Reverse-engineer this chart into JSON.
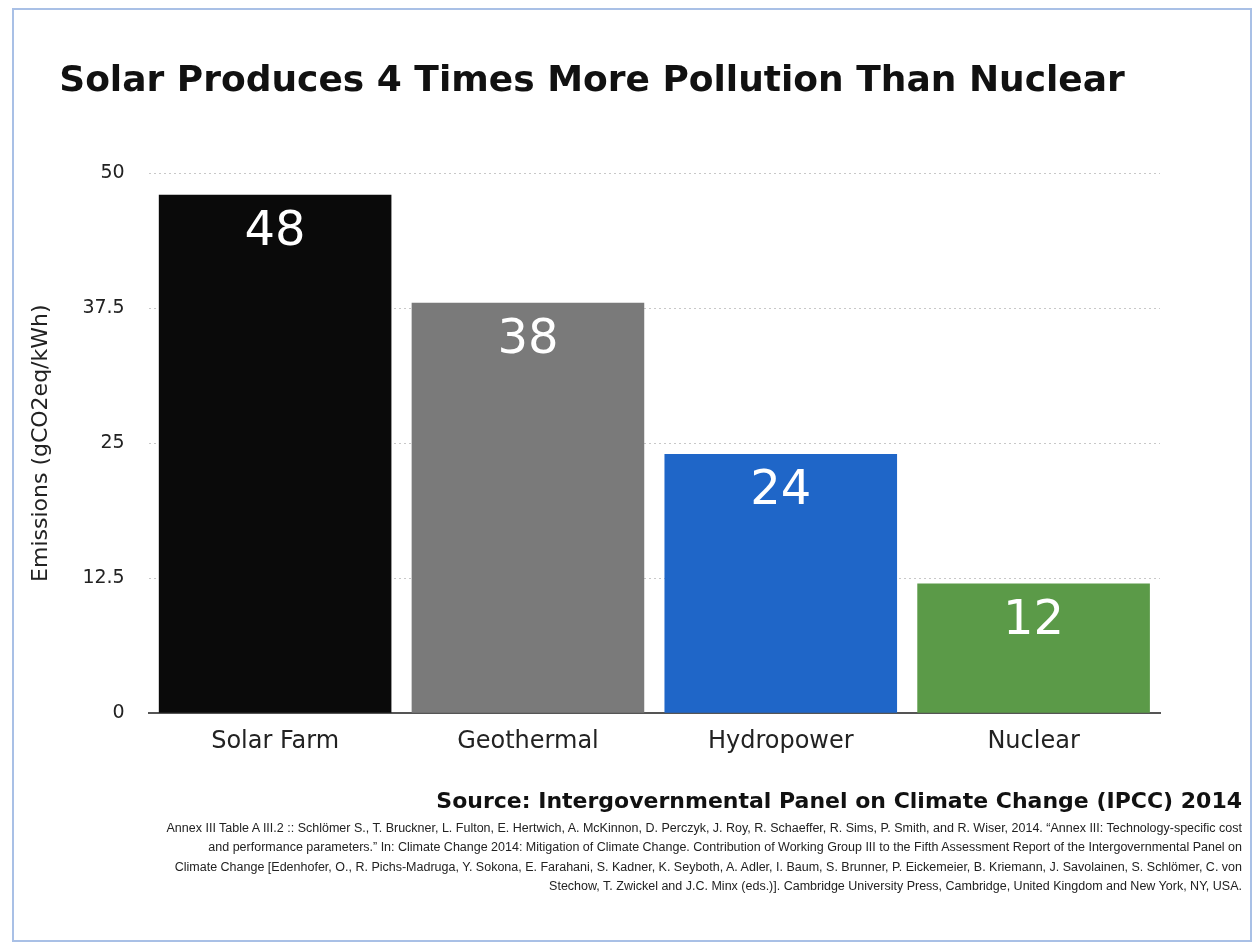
{
  "chart_data": {
    "type": "bar",
    "title": "Solar Produces 4 Times More Pollution Than Nuclear",
    "ylabel": "Emissions (gCO2eq/kWh)",
    "categories": [
      "Solar Farm",
      "Geothermal",
      "Hydropower",
      "Nuclear"
    ],
    "values": [
      48,
      38,
      24,
      12
    ],
    "colors": [
      "#0a0a0a",
      "#7a7a7a",
      "#1f66c8",
      "#5b9a48"
    ],
    "ylim": [
      0,
      50
    ],
    "yticks": [
      0,
      12.5,
      25,
      37.5,
      50
    ],
    "grid": "y",
    "data_labels": true,
    "legend": false,
    "annotations": [
      "Source: Intergovernmental Panel on Climate Change (IPCC) 2014",
      "Annex III Table A III.2  :: Schlömer S., T. Bruckner, L. Fulton, E. Hertwich, A. McKinnon, D. Perczyk, J. Roy, R. Schaeffer, R. Sims, P. Smith, and R. Wiser, 2014. “Annex III: Technology-specific cost and performance parameters.” In: Climate Change 2014: Mitigation of Climate Change. Contribution of Working Group III to the Fifth Assessment Report of the Intergovernmental Panel on Climate Change [Edenhofer, O., R. Pichs-Madruga, Y. Sokona, E. Farahani, S. Kadner, K. Seyboth, A. Adler, I. Baum, S. Brunner, P. Eickemeier, B. Kriemann, J. Savolainen, S. Schlömer, C. von Stechow, T. Zwickel and J.C. Minx (eds.)]. Cambridge University Press, Cambridge, United Kingdom and New York, NY, USA."
    ]
  }
}
